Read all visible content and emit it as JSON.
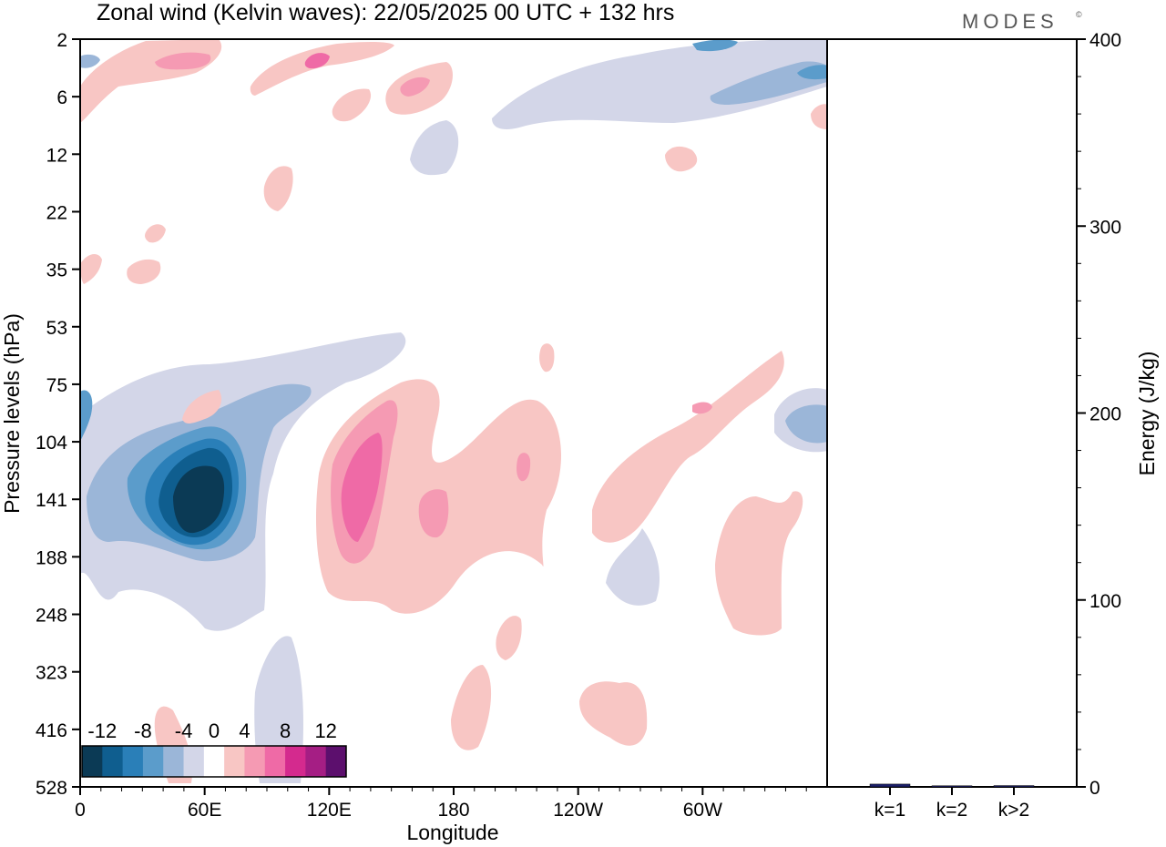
{
  "chart_data": [
    {
      "type": "heatmap",
      "title": "Zonal wind (Kelvin waves):  22/05/2025  00 UTC  + 132 hrs",
      "brand": "MODES",
      "brand_mark": "©",
      "xlabel": "Longitude",
      "ylabel": "Pressure levels (hPa)",
      "x_tick_labels": [
        "0",
        "60E",
        "120E",
        "180",
        "120W",
        "60W"
      ],
      "x_tick_degrees": [
        0,
        60,
        120,
        180,
        240,
        300
      ],
      "xlim": [
        0,
        360
      ],
      "y_tick_labels": [
        "2",
        "6",
        "12",
        "22",
        "35",
        "53",
        "75",
        "104",
        "141",
        "188",
        "248",
        "323",
        "416",
        "528"
      ],
      "y_scale": "pressure levels, top = 2 hPa, bottom = 528 hPa",
      "colorbar": {
        "tick_labels": [
          "-12",
          "-8",
          "-4",
          "0",
          "4",
          "8",
          "12"
        ],
        "tick_values": [
          -12,
          -8,
          -4,
          0,
          4,
          8,
          12
        ],
        "bins": [
          -14,
          -12,
          -10,
          -8,
          -6,
          -4,
          -2,
          2,
          4,
          6,
          8,
          10,
          12,
          14
        ],
        "colors": [
          "#0b3a55",
          "#0f5e8f",
          "#2a7fb8",
          "#5b9ccb",
          "#9bb6d8",
          "#d3d6e8",
          "#ffffff",
          "#f8c6c4",
          "#f59ab3",
          "#ef6aa6",
          "#d42a8e",
          "#a51e84",
          "#5c0f6d"
        ]
      },
      "features": [
        {
          "id": "neg-core",
          "level": -14,
          "lon": [
            37,
            72
          ],
          "lev": [
            6.7,
            10.3
          ]
        },
        {
          "id": "neg-lower",
          "level": -6,
          "lon": [
            22,
            85
          ],
          "lev": [
            6.3,
            10.8
          ]
        },
        {
          "id": "neg-band",
          "level": -4,
          "lon": [
            5,
            125
          ],
          "lev": [
            5.4,
            11.5
          ]
        },
        {
          "id": "pos-main",
          "level": 6,
          "lon": [
            112,
            148
          ],
          "lev": [
            6.8,
            10.2
          ]
        },
        {
          "id": "pos-band",
          "level": 2,
          "lon": [
            115,
            345
          ],
          "lev": [
            5.0,
            11.5
          ]
        },
        {
          "id": "neg-top",
          "level": -6,
          "lon": [
            285,
            355
          ],
          "lev": [
            0,
            1.2
          ]
        },
        {
          "id": "pos-top",
          "level": 4,
          "lon": [
            15,
            80
          ],
          "lev": [
            0,
            1.0
          ]
        }
      ]
    },
    {
      "type": "bar",
      "ylabel": "Energy (J/kg)",
      "ylim": [
        0,
        400
      ],
      "y_tick_labels": [
        "0",
        "100",
        "200",
        "300",
        "400"
      ],
      "y_tick_values": [
        0,
        100,
        200,
        300,
        400
      ],
      "categories": [
        "k=1",
        "k=2",
        "k>2"
      ],
      "values": [
        1.5,
        0.6,
        0.7
      ],
      "bar_color": "#1b1f6b"
    }
  ]
}
